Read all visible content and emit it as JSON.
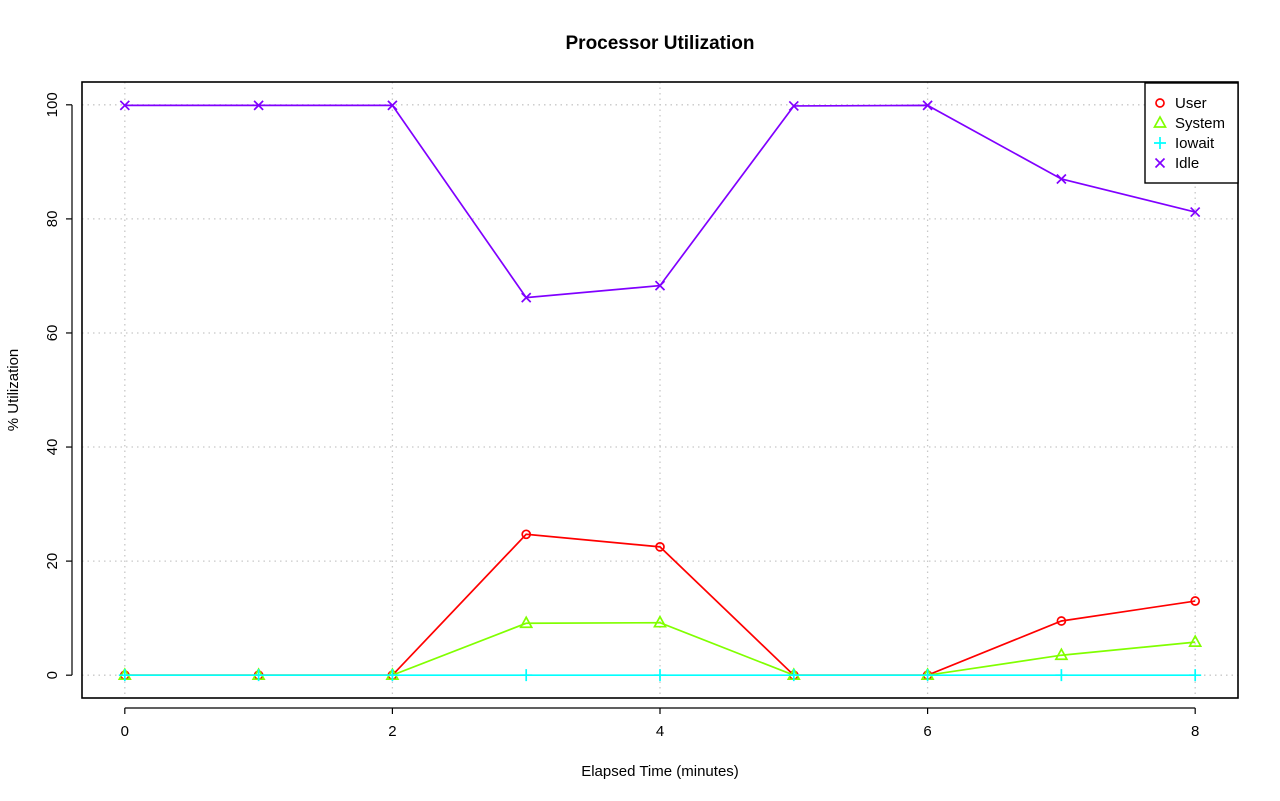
{
  "chart_data": {
    "type": "line",
    "title": "Processor Utilization",
    "xlabel": "Elapsed Time (minutes)",
    "ylabel": "% Utilization",
    "x": [
      0,
      1,
      2,
      3,
      4,
      5,
      6,
      7,
      8
    ],
    "xlim": [
      -0.32,
      8.32
    ],
    "ylim": [
      -4,
      104
    ],
    "xticks": [
      0,
      2,
      4,
      6,
      8
    ],
    "yticks": [
      0,
      20,
      40,
      60,
      80,
      100
    ],
    "grid": true,
    "legend_position": "top-right",
    "series": [
      {
        "name": "User",
        "color": "#ff0000",
        "marker": "circle",
        "values": [
          0,
          0,
          0,
          24.7,
          22.5,
          0,
          0,
          9.5,
          13.0
        ]
      },
      {
        "name": "System",
        "color": "#80ff00",
        "marker": "triangle",
        "values": [
          0,
          0,
          0,
          9.1,
          9.2,
          0,
          0,
          3.5,
          5.8
        ]
      },
      {
        "name": "Iowait",
        "color": "#00ffff",
        "marker": "plus",
        "values": [
          0,
          0,
          0,
          0,
          0,
          0,
          0,
          0,
          0
        ]
      },
      {
        "name": "Idle",
        "color": "#8000ff",
        "marker": "cross",
        "values": [
          99.9,
          99.9,
          99.9,
          66.2,
          68.3,
          99.8,
          99.9,
          87.0,
          81.2
        ]
      }
    ]
  }
}
